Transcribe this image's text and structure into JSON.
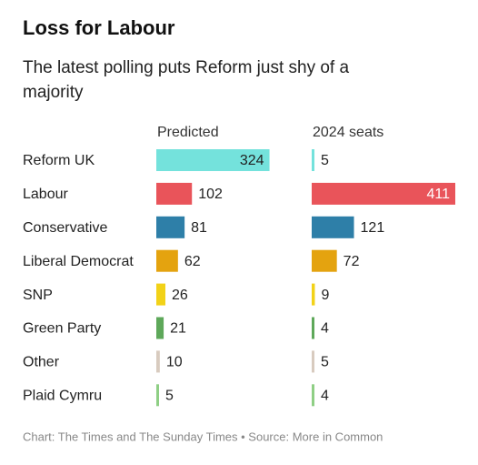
{
  "chart_data": {
    "type": "bar",
    "title": "Loss for Labour",
    "subtitle": [
      "The latest polling puts Reform just shy of a",
      "majority"
    ],
    "categories": [
      "Reform UK",
      "Labour",
      "Conservative",
      "Liberal Democrat",
      "SNP",
      "Green Party",
      "Other",
      "Plaid Cymru"
    ],
    "colors": [
      "#74e2dc",
      "#e9545a",
      "#2e7fa8",
      "#e4a30f",
      "#f2d218",
      "#5ea85a",
      "#d8cbbf",
      "#8fcf85"
    ],
    "series": [
      {
        "name": "Predicted",
        "values": [
          324,
          102,
          81,
          62,
          26,
          21,
          10,
          5
        ]
      },
      {
        "name": "2024 seats",
        "values": [
          5,
          411,
          121,
          72,
          9,
          4,
          5,
          4
        ]
      }
    ],
    "footer": "Chart: The Times and The Sunday Times • Source: More in Common"
  }
}
